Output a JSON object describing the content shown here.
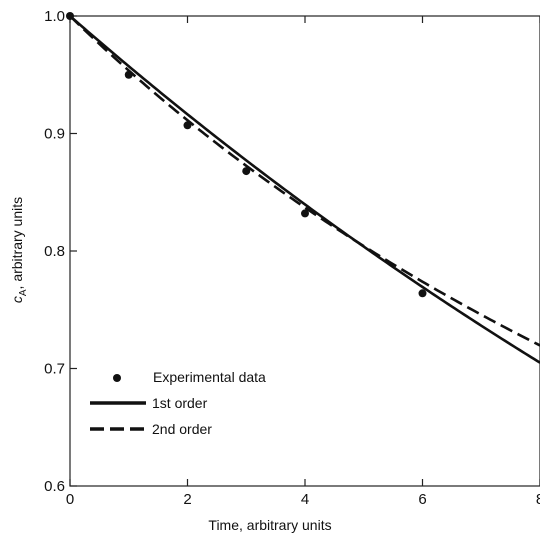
{
  "chart_data": {
    "type": "line",
    "xlabel": "Time, arbitrary units",
    "ylabel_main": "c",
    "ylabel_sub": "A",
    "ylabel_rest": ", arbitrary units",
    "xlim": [
      0,
      8
    ],
    "ylim": [
      0.6,
      1.0
    ],
    "x_ticks": [
      0,
      2,
      4,
      6,
      8
    ],
    "x_tick_labels": [
      "0",
      "2",
      "4",
      "6",
      "8"
    ],
    "y_ticks": [
      0.6,
      0.7,
      0.8,
      0.9,
      1.0
    ],
    "y_tick_labels": [
      "0.6",
      "0.7",
      "0.8",
      "0.9",
      "1.0"
    ],
    "grid": false,
    "legend_position": "bottom-left",
    "series": [
      {
        "name": "Experimental data",
        "style": "points",
        "x": [
          0,
          1,
          2,
          3,
          4,
          6
        ],
        "y": [
          1.0,
          0.95,
          0.907,
          0.868,
          0.832,
          0.764
        ]
      },
      {
        "name": "1st order",
        "style": "solid",
        "k": 0.0437
      },
      {
        "name": "2nd order",
        "style": "dashed",
        "k": 0.0487
      }
    ]
  }
}
